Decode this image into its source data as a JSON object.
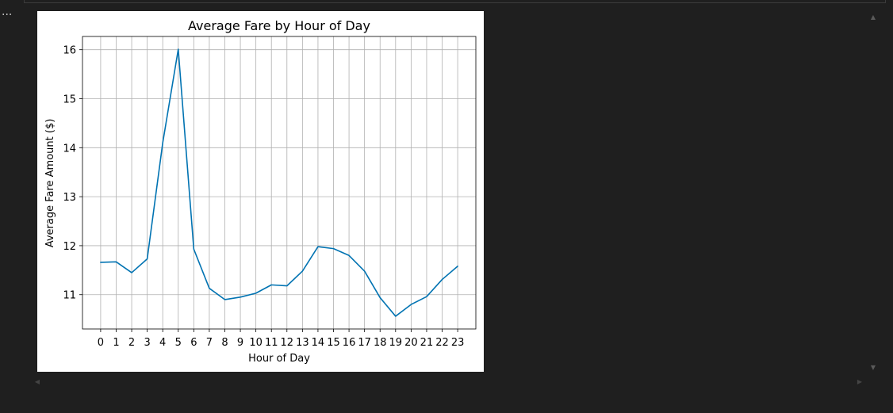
{
  "toolbar": {
    "more_label": "..."
  },
  "chart_data": {
    "type": "line",
    "title": "Average Fare by Hour of Day",
    "xlabel": "Hour of Day",
    "ylabel": "Average Fare Amount ($)",
    "x": [
      0,
      1,
      2,
      3,
      4,
      5,
      6,
      7,
      8,
      9,
      10,
      11,
      12,
      13,
      14,
      15,
      16,
      17,
      18,
      19,
      20,
      21,
      22,
      23
    ],
    "series": [
      {
        "values": [
          11.66,
          11.67,
          11.45,
          11.73,
          14.1,
          16.01,
          11.93,
          11.13,
          10.9,
          10.95,
          11.03,
          11.2,
          11.18,
          11.48,
          11.98,
          11.94,
          11.8,
          11.48,
          10.94,
          10.56,
          10.8,
          10.96,
          11.31,
          11.58
        ],
        "color": "#0173b2"
      }
    ],
    "xticks": [
      "0",
      "1",
      "2",
      "3",
      "4",
      "5",
      "6",
      "7",
      "8",
      "9",
      "10",
      "11",
      "12",
      "13",
      "14",
      "15",
      "16",
      "17",
      "18",
      "19",
      "20",
      "21",
      "22",
      "23"
    ],
    "yticks": [
      11,
      12,
      13,
      14,
      15,
      16
    ],
    "ylim": [
      10.3,
      16.27
    ],
    "xlim": [
      -1.17,
      24.17
    ],
    "grid": true,
    "colors": {
      "line": "#0173b2",
      "grid": "#b0b0b0",
      "background": "#ffffff",
      "page": "#1f1f1f"
    }
  }
}
